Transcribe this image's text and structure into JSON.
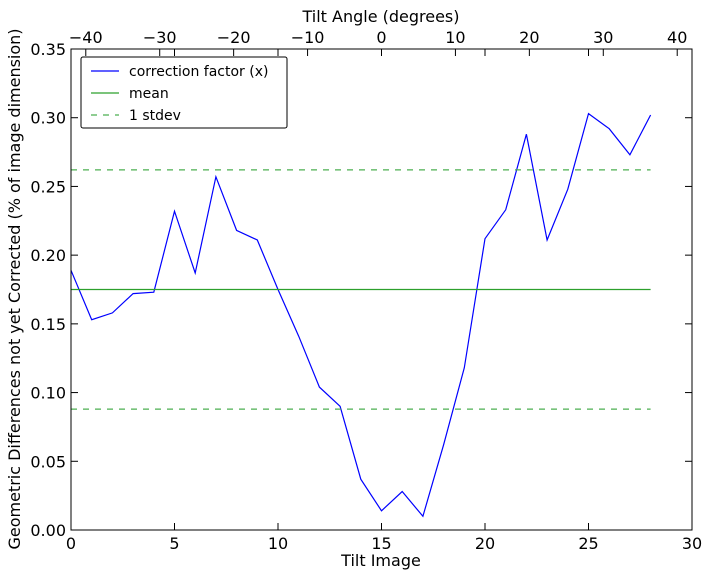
{
  "chart_data": {
    "type": "line",
    "xlabel": "Tilt Image",
    "ylabel": "Geometric Differences not yet Corrected (% of image dimension)",
    "top_xlabel": "Tilt Angle (degrees)",
    "xlim": [
      0,
      30
    ],
    "ylim": [
      0.0,
      0.35
    ],
    "top_xlim": [
      -42,
      42
    ],
    "x_ticks": [
      0,
      5,
      10,
      15,
      20,
      25,
      30
    ],
    "x_tick_labels": [
      "0",
      "5",
      "10",
      "15",
      "20",
      "25",
      "30"
    ],
    "y_ticks": [
      0.0,
      0.05,
      0.1,
      0.15,
      0.2,
      0.25,
      0.3,
      0.35
    ],
    "y_tick_labels": [
      "0.00",
      "0.05",
      "0.10",
      "0.15",
      "0.20",
      "0.25",
      "0.30",
      "0.35"
    ],
    "top_ticks": [
      -40,
      -30,
      -20,
      -10,
      0,
      10,
      20,
      30,
      40
    ],
    "top_tick_labels": [
      "−40",
      "−30",
      "−20",
      "−10",
      "0",
      "10",
      "20",
      "30",
      "40"
    ],
    "grid": false,
    "legend_position": "top-left",
    "series": [
      {
        "name": "correction factor (x)",
        "color": "#0000ff",
        "style": "solid",
        "x": [
          0,
          1,
          2,
          3,
          4,
          5,
          6,
          7,
          8,
          9,
          10,
          11,
          12,
          13,
          14,
          15,
          16,
          17,
          18,
          19,
          20,
          21,
          22,
          23,
          24,
          25,
          26,
          27,
          28
        ],
        "y": [
          0.189,
          0.153,
          0.158,
          0.172,
          0.173,
          0.232,
          0.187,
          0.257,
          0.218,
          0.211,
          0.175,
          0.141,
          0.104,
          0.09,
          0.037,
          0.014,
          0.028,
          0.01,
          0.062,
          0.118,
          0.212,
          0.233,
          0.288,
          0.211,
          0.248,
          0.303,
          0.292,
          0.273,
          0.302
        ]
      },
      {
        "name": "mean",
        "color": "#2ca02c",
        "style": "solid",
        "x": [
          0,
          28
        ],
        "y": [
          0.175,
          0.175
        ]
      },
      {
        "name": "1 stdev",
        "color": "#4caf50",
        "style": "dashed",
        "x": [
          0,
          28
        ],
        "y": [
          0.262,
          0.262
        ]
      },
      {
        "name": "",
        "color": "#4caf50",
        "style": "dashed",
        "x": [
          0,
          28
        ],
        "y": [
          0.088,
          0.088
        ]
      }
    ],
    "legend": [
      "correction factor (x)",
      "mean",
      "1 stdev"
    ]
  }
}
